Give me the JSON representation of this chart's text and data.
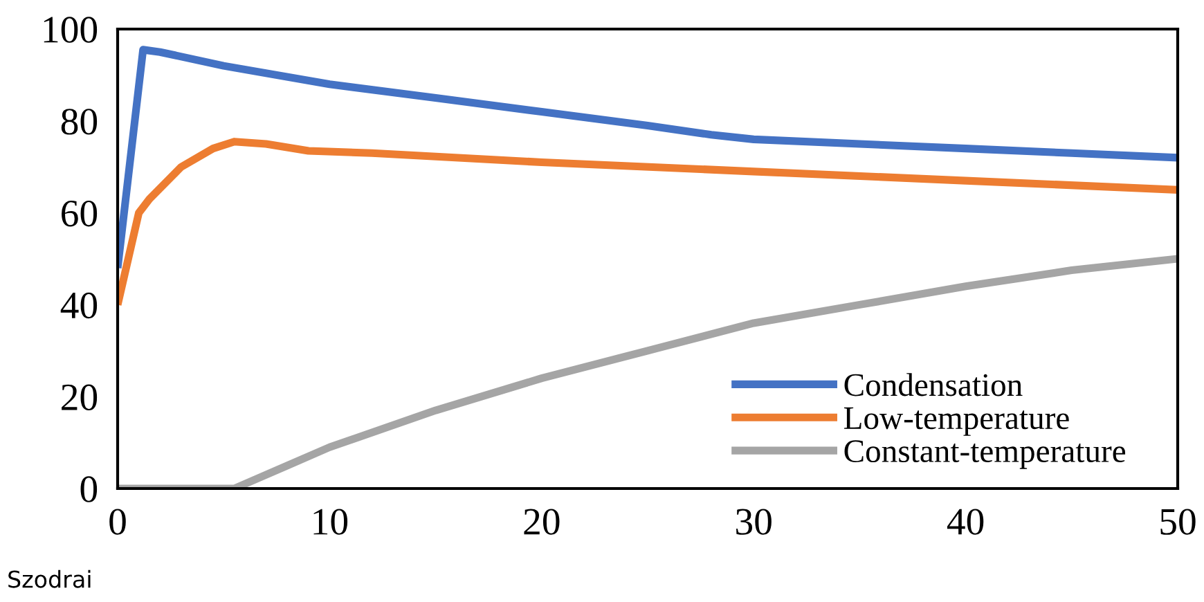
{
  "chart_data": {
    "type": "line",
    "xlim": [
      0,
      50
    ],
    "xticks": [
      0,
      10,
      20,
      30,
      40,
      50
    ],
    "ylim": [
      0,
      100
    ],
    "yticks": [
      0,
      20,
      40,
      60,
      80,
      100
    ],
    "grid": false,
    "legend": "bottom right",
    "marker": "none",
    "line_style": "solid",
    "annotations": [
      "Szodrai"
    ],
    "series": [
      {
        "name": "Condensation",
        "color": "#4472c4",
        "x": [
          0,
          1.2,
          2,
          5,
          10,
          15,
          20,
          25,
          28,
          30,
          35,
          40,
          45,
          50
        ],
        "values": [
          48,
          95.5,
          95,
          92,
          88,
          85,
          82,
          79,
          77,
          76,
          75,
          74,
          73,
          72
        ]
      },
      {
        "name": "Low-temperature",
        "color": "#ed7d31",
        "x": [
          0,
          1,
          1.5,
          3,
          4.5,
          5.5,
          7,
          9,
          12,
          20,
          30,
          40,
          50
        ],
        "values": [
          40,
          60,
          63,
          70,
          74,
          75.5,
          75,
          73.5,
          73,
          71,
          69,
          67,
          65
        ]
      },
      {
        "name": "Constant-temperature",
        "color": "#a5a5a5",
        "x": [
          0,
          2,
          5.5,
          8,
          10,
          15,
          20,
          25,
          30,
          35,
          40,
          45,
          50
        ],
        "values": [
          0,
          0,
          0,
          5,
          9,
          17,
          24,
          30,
          36,
          40,
          44,
          47.5,
          50
        ]
      }
    ]
  }
}
